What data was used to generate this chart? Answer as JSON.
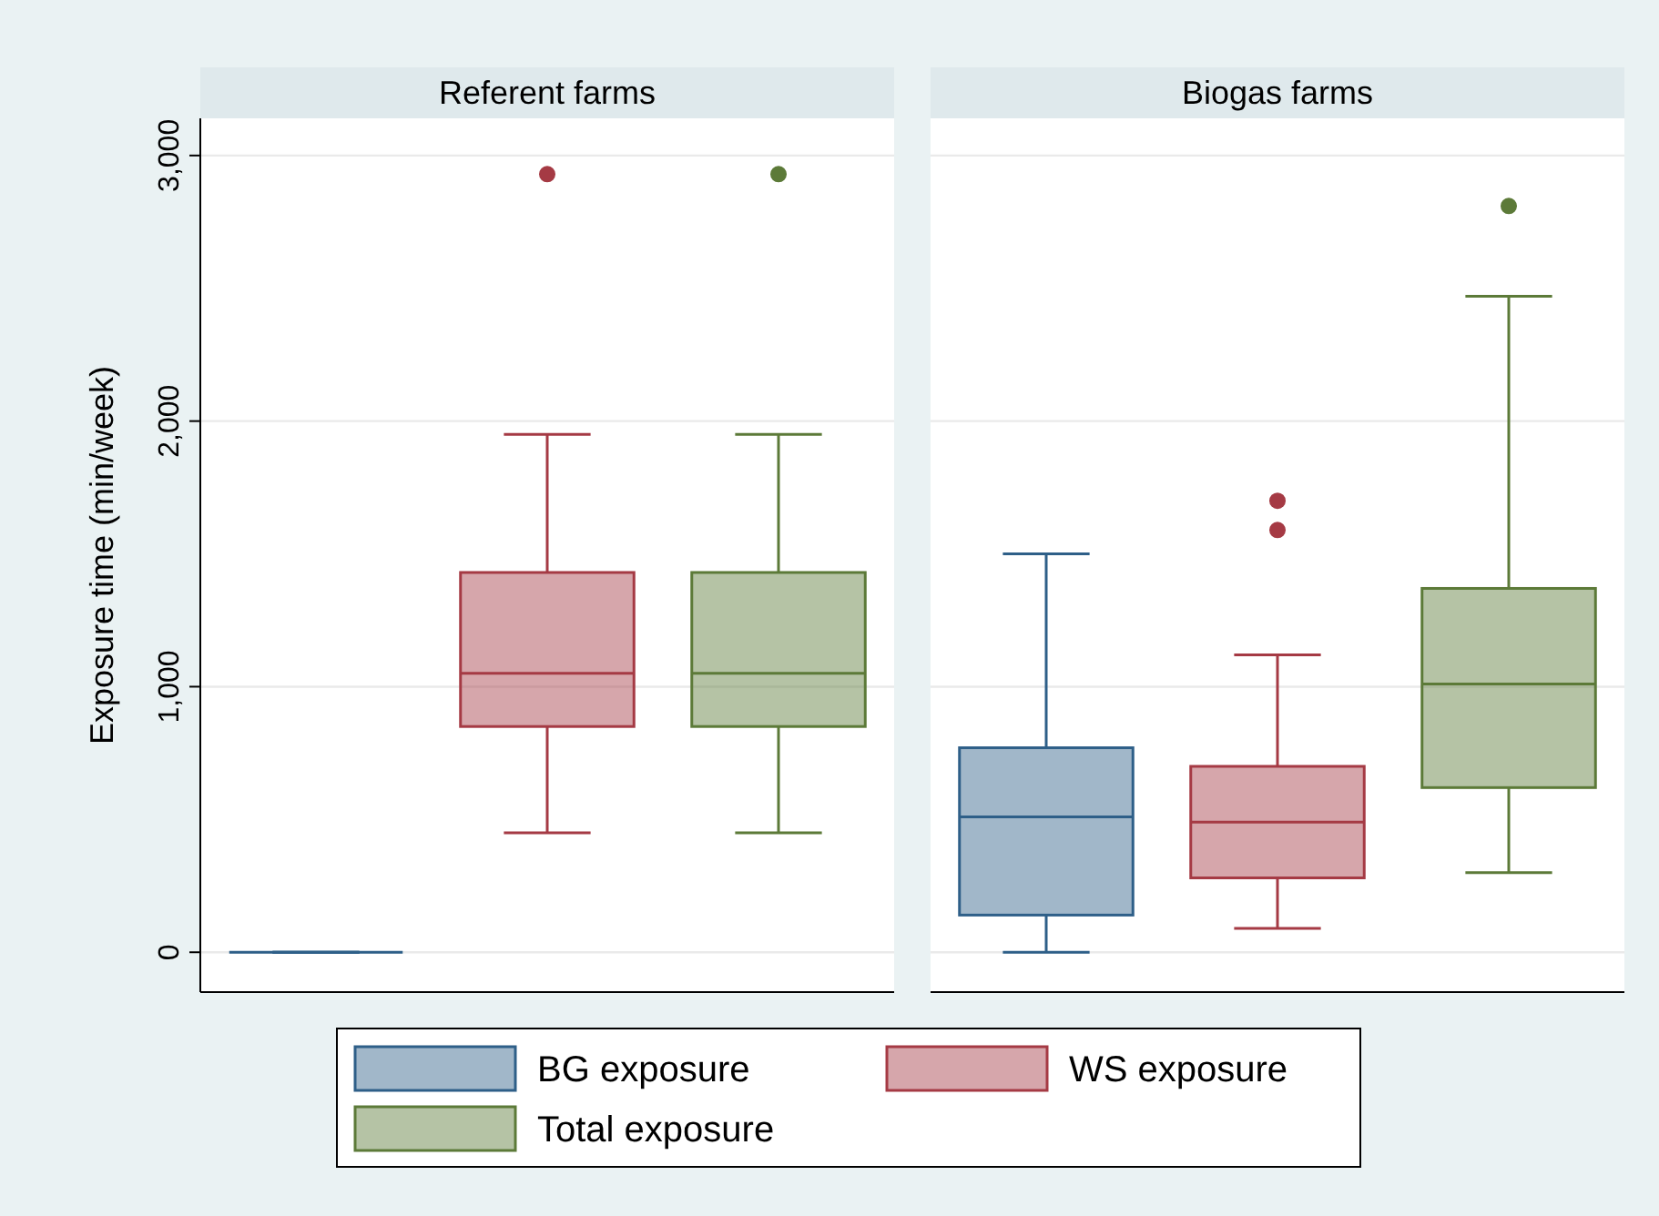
{
  "chart_data": {
    "type": "box",
    "ylabel": "Exposure time (min/week)",
    "categories": [
      "Referent farms",
      "Biogas farms"
    ],
    "ylim": [
      -150,
      3140
    ],
    "yticks": [
      0,
      {
        "value": 1000,
        "label": "1,000"
      },
      {
        "value": 2000,
        "label": "2,000"
      },
      {
        "value": 3000,
        "label": "3,000"
      }
    ],
    "grid": "y",
    "legend": "bottom",
    "series": [
      {
        "name": "BG exposure",
        "color": "#2e5f88",
        "boxes": [
          {
            "low": 0,
            "q1": 0,
            "median": 0,
            "q3": 0,
            "high": 0
          },
          {
            "low": 0,
            "q1": 140,
            "median": 510,
            "q3": 770,
            "high": 1500
          }
        ]
      },
      {
        "name": "WS exposure",
        "color": "#a53a44",
        "boxes": [
          {
            "low": 450,
            "q1": 850,
            "median": 1050,
            "q3": 1430,
            "high": 1950,
            "outliers": [
              2930
            ]
          },
          {
            "low": 90,
            "q1": 280,
            "median": 490,
            "q3": 700,
            "high": 1120,
            "outliers": [
              1590,
              1700
            ]
          }
        ]
      },
      {
        "name": "Total exposure",
        "color": "#5c7a38",
        "boxes": [
          {
            "low": 450,
            "q1": 850,
            "median": 1050,
            "q3": 1430,
            "high": 1950,
            "outliers": [
              2930
            ]
          },
          {
            "low": 300,
            "q1": 620,
            "median": 1010,
            "q3": 1370,
            "high": 2470,
            "outliers": [
              2810
            ]
          }
        ]
      }
    ]
  }
}
